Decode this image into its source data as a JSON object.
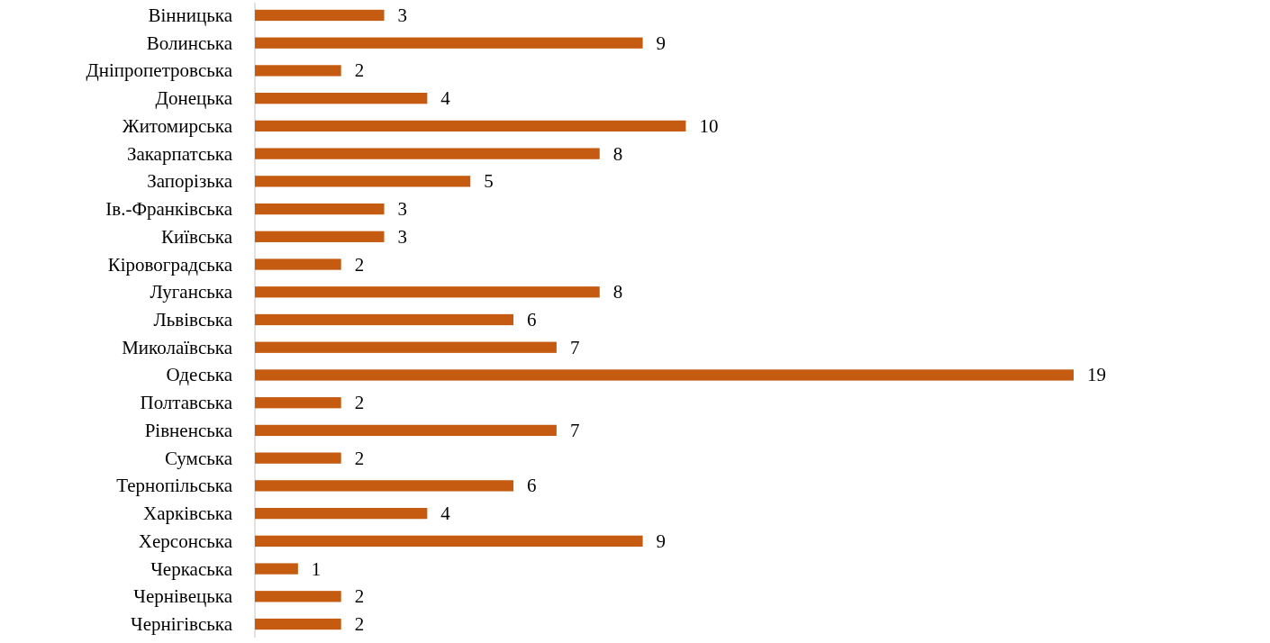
{
  "chart_data": {
    "type": "bar",
    "orientation": "horizontal",
    "categories": [
      "Вінницька",
      "Волинська",
      "Дніпропетровська",
      "Донецька",
      "Житомирська",
      "Закарпатська",
      "Запорізька",
      "Ів.-Франківська",
      "Київська",
      "Кіровоградська",
      "Луганська",
      "Львівська",
      "Миколаївська",
      "Одеська",
      "Полтавська",
      "Рівненська",
      "Сумська",
      "Тернопільська",
      "Харківська",
      "Херсонська",
      "Черкаська",
      "Чернівецька",
      "Чернігівська"
    ],
    "values": [
      3,
      9,
      2,
      4,
      10,
      8,
      5,
      3,
      3,
      2,
      8,
      6,
      7,
      19,
      2,
      7,
      2,
      6,
      4,
      9,
      1,
      2,
      2
    ],
    "color": "#c55a11",
    "data_labels": true
  }
}
